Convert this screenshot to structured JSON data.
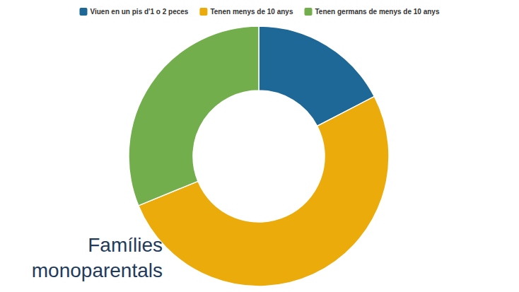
{
  "chart_data": {
    "type": "pie",
    "title": "Famílies monoparentals",
    "categories": [
      "Viuen en un pis d'1 o 2 peces",
      "Tenen menys de 10 anys",
      "Tenen germans de menys de 10 anys"
    ],
    "values": [
      17.4,
      51.4,
      31.2
    ],
    "colors": [
      "#1d6896",
      "#ebab0b",
      "#72ae4b"
    ],
    "legend": "top"
  }
}
